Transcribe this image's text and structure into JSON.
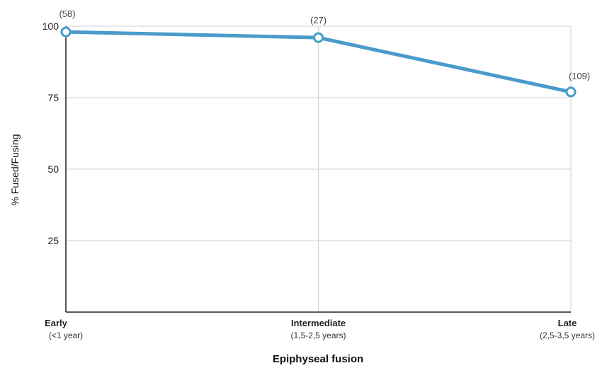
{
  "chart_data": {
    "type": "line",
    "xlabel": "Epiphyseal fusion",
    "ylabel": "% Fused/Fusing",
    "ylim": [
      0,
      100
    ],
    "yticks": [
      25,
      50,
      75,
      100
    ],
    "grid": true,
    "categories": [
      {
        "label": "Early",
        "sublabel": "(<1 year)"
      },
      {
        "label": "Intermediate",
        "sublabel": "(1,5-2,5 years)"
      },
      {
        "label": "Late",
        "sublabel": "(2,5-3,5 years)"
      }
    ],
    "series": [
      {
        "values": [
          98,
          96,
          77
        ],
        "counts": [
          "(58)",
          "(27)",
          "(109)"
        ],
        "color": "#4a9bcb"
      }
    ]
  }
}
